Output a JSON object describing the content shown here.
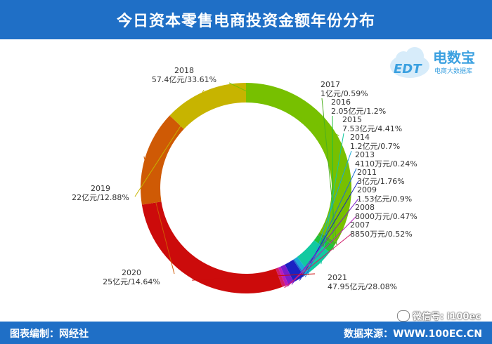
{
  "header": {
    "title": "今日资本零售电商投资金额年份分布"
  },
  "footer": {
    "left": "图表编制：网经社",
    "right": "数据来源：WWW.100EC.CN"
  },
  "watermark": {
    "wechat": "微信号: i100ec"
  },
  "logo": {
    "brand": "电数宝",
    "sub": "电商大数据库",
    "mark": "EDT"
  },
  "chart_data": {
    "type": "pie",
    "donut": true,
    "title": "今日资本零售电商投资金额年份分布",
    "legend": "none",
    "slices": [
      {
        "year": "2018",
        "value_label": "57.4亿元/33.61%",
        "percent": 33.61,
        "color": "#77c000"
      },
      {
        "year": "2017",
        "value_label": "1亿元/0.59%",
        "percent": 0.59,
        "color": "#4caf1e"
      },
      {
        "year": "2016",
        "value_label": "2.05亿元/1.2%",
        "percent": 1.2,
        "color": "#22c23a"
      },
      {
        "year": "2015",
        "value_label": "7.53亿元/4.41%",
        "percent": 4.41,
        "color": "#12c9a0"
      },
      {
        "year": "2014",
        "value_label": "1.2亿元/0.7%",
        "percent": 0.7,
        "color": "#1aa9d6"
      },
      {
        "year": "2013",
        "value_label": "4110万元/0.24%",
        "percent": 0.24,
        "color": "#1e6fd0"
      },
      {
        "year": "2011",
        "value_label": "3亿元/1.76%",
        "percent": 1.76,
        "color": "#1a23c2"
      },
      {
        "year": "2009",
        "value_label": "1.53亿元/0.9%",
        "percent": 0.9,
        "color": "#7a1ccc"
      },
      {
        "year": "2008",
        "value_label": "8000万元/0.47%",
        "percent": 0.47,
        "color": "#b81cbb"
      },
      {
        "year": "2007",
        "value_label": "8850万元/0.52%",
        "percent": 0.52,
        "color": "#d21c6a"
      },
      {
        "year": "2021",
        "value_label": "47.95亿元/28.08%",
        "percent": 28.08,
        "color": "#cc0b0b"
      },
      {
        "year": "2020",
        "value_label": "25亿元/14.64%",
        "percent": 14.64,
        "color": "#cf5a05"
      },
      {
        "year": "2019",
        "value_label": "22亿元/12.88%",
        "percent": 12.88,
        "color": "#c7b400"
      }
    ]
  }
}
